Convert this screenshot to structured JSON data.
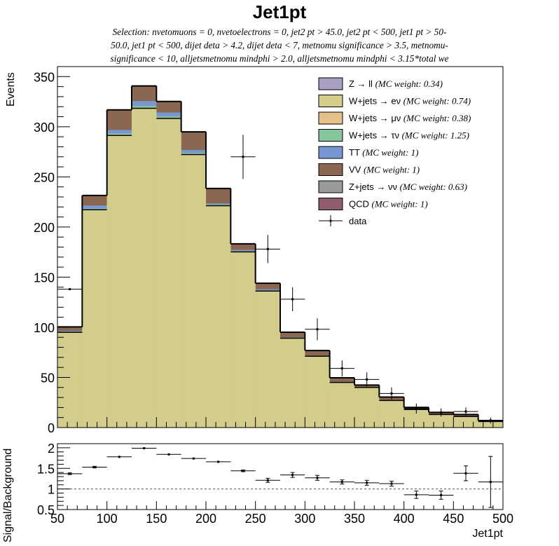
{
  "chart_data": [
    {
      "type": "bar",
      "title": "Jet1pt",
      "subtitle_lines": [
        "Selection: nvetomuons = 0, nvetoelectrons = 0, jet2 pt > 45.0, jet2 pt < 500, jet1 pt > 50-",
        "50.0, jet1 pt < 500, dijet deta > 4.2, dijet deta < 7, metnomu significance > 3.5, metnomu-",
        "significance < 10, alljetsmetnomu mindphi > 2.0, alljetsmetnomu mindphi < 3.15*total we"
      ],
      "xlabel": "Jet1pt",
      "ylabel": "Events",
      "xlim": [
        50,
        500
      ],
      "ylim": [
        0,
        360
      ],
      "x_ticks": [
        50,
        100,
        150,
        200,
        250,
        300,
        350,
        400,
        450,
        500
      ],
      "y_ticks": [
        0,
        50,
        100,
        150,
        200,
        250,
        300,
        350
      ],
      "bin_edges": [
        50,
        75,
        100,
        125,
        150,
        175,
        200,
        225,
        250,
        275,
        300,
        325,
        350,
        375,
        400,
        425,
        450,
        475,
        500
      ],
      "stacked": true,
      "series": [
        {
          "name": "Z → ll",
          "weight": "(MC weight: 0.34)",
          "color": "#a99fc1",
          "values": [
            0,
            0.2,
            0.3,
            0.4,
            0.3,
            0.3,
            0.2,
            0.2,
            0.1,
            0.1,
            0.1,
            0,
            0,
            0,
            0,
            0,
            0,
            0
          ]
        },
        {
          "name": "W+jets → eν",
          "weight": "(MC weight: 0.74)",
          "color": "#d2cd8b",
          "values": [
            95,
            217,
            291,
            318,
            308,
            272,
            221,
            175,
            136,
            89,
            71,
            45,
            40,
            27,
            18,
            13,
            11,
            6
          ]
        },
        {
          "name": "W+jets → μν",
          "weight": "(MC weight: 0.38)",
          "color": "#e5c08a",
          "values": [
            0.3,
            0.5,
            0.8,
            0.8,
            0.7,
            0.6,
            0.5,
            0.4,
            0.3,
            0.2,
            0.2,
            0.1,
            0.1,
            0.1,
            0,
            0,
            0,
            0
          ]
        },
        {
          "name": "W+jets → τν",
          "weight": "(MC weight: 1.25)",
          "color": "#86c49b",
          "values": [
            0.3,
            0.8,
            1.2,
            1.5,
            1.2,
            1.0,
            0.8,
            0.6,
            0.5,
            0.3,
            0.2,
            0.2,
            0.1,
            0.1,
            0,
            0,
            0,
            0
          ]
        },
        {
          "name": "TT",
          "weight": "(MC weight: 1)",
          "color": "#7797d2",
          "values": [
            0.8,
            3,
            3.5,
            5,
            4,
            3,
            1,
            1,
            1,
            0.5,
            0.3,
            0.3,
            0.2,
            0.2,
            0.1,
            0.1,
            0,
            0
          ]
        },
        {
          "name": "VV",
          "weight": "(MC weight: 1)",
          "color": "#8b6650",
          "values": [
            4,
            10,
            20,
            15,
            11,
            18,
            15,
            6,
            6,
            5,
            5,
            4,
            2,
            3,
            2,
            2,
            2,
            1
          ]
        },
        {
          "name": "Z+jets → νν",
          "weight": "(MC weight: 0.63)",
          "color": "#999999",
          "values": [
            0,
            0,
            0,
            0,
            0,
            0,
            0,
            0,
            0,
            0,
            0,
            0,
            0,
            0,
            0,
            0,
            0,
            0
          ]
        },
        {
          "name": "QCD",
          "weight": "(MC weight: 1)",
          "color": "#8e5e6f",
          "values": [
            0,
            0,
            0,
            0,
            0,
            0,
            0,
            0,
            0,
            0,
            0,
            0,
            0,
            0,
            0,
            0,
            0,
            0
          ]
        }
      ],
      "data": {
        "name": "data",
        "x": [
          62.5,
          87.5,
          112.5,
          137.5,
          162.5,
          187.5,
          212.5,
          237.5,
          262.5,
          287.5,
          312.5,
          337.5,
          362.5,
          387.5,
          412.5,
          437.5,
          462.5,
          487.5
        ],
        "y": [
          138,
          0,
          0,
          0,
          0,
          0,
          0,
          270,
          178,
          128,
          98,
          59,
          48,
          34,
          19,
          15,
          16,
          7
        ],
        "yerr": [
          0,
          0,
          0,
          0,
          0,
          0,
          0,
          22,
          14,
          12,
          11,
          8,
          7,
          6,
          5,
          4,
          4,
          3
        ]
      },
      "legend_position": "top-right"
    },
    {
      "type": "scatter",
      "ylabel": "Signal/Background",
      "xlabel": "Jet1pt",
      "xlim": [
        50,
        500
      ],
      "ylim": [
        0.5,
        2.1
      ],
      "x_ticks": [
        50,
        100,
        150,
        200,
        250,
        300,
        350,
        400,
        450,
        500
      ],
      "y_ticks": [
        0.5,
        1,
        1.5,
        2
      ],
      "reference_line": 1,
      "x": [
        62.5,
        87.5,
        112.5,
        137.5,
        162.5,
        187.5,
        212.5,
        237.5,
        262.5,
        287.5,
        312.5,
        337.5,
        362.5,
        387.5,
        412.5,
        437.5,
        462.5,
        487.5
      ],
      "y": [
        1.37,
        1.53,
        1.78,
        1.99,
        1.84,
        1.74,
        1.66,
        1.44,
        1.21,
        1.34,
        1.27,
        1.17,
        1.15,
        1.13,
        0.86,
        0.85,
        1.38,
        1.17
      ],
      "yerr": [
        0.02,
        0.02,
        0.01,
        0.01,
        0.01,
        0.01,
        0.01,
        0.02,
        0.05,
        0.06,
        0.06,
        0.05,
        0.06,
        0.06,
        0.09,
        0.1,
        0.18,
        0.62
      ]
    }
  ],
  "axis_labels": {
    "title": "Jet1pt",
    "y_top": "Events",
    "y_bottom": "Signal/Background",
    "x": "Jet1pt"
  }
}
